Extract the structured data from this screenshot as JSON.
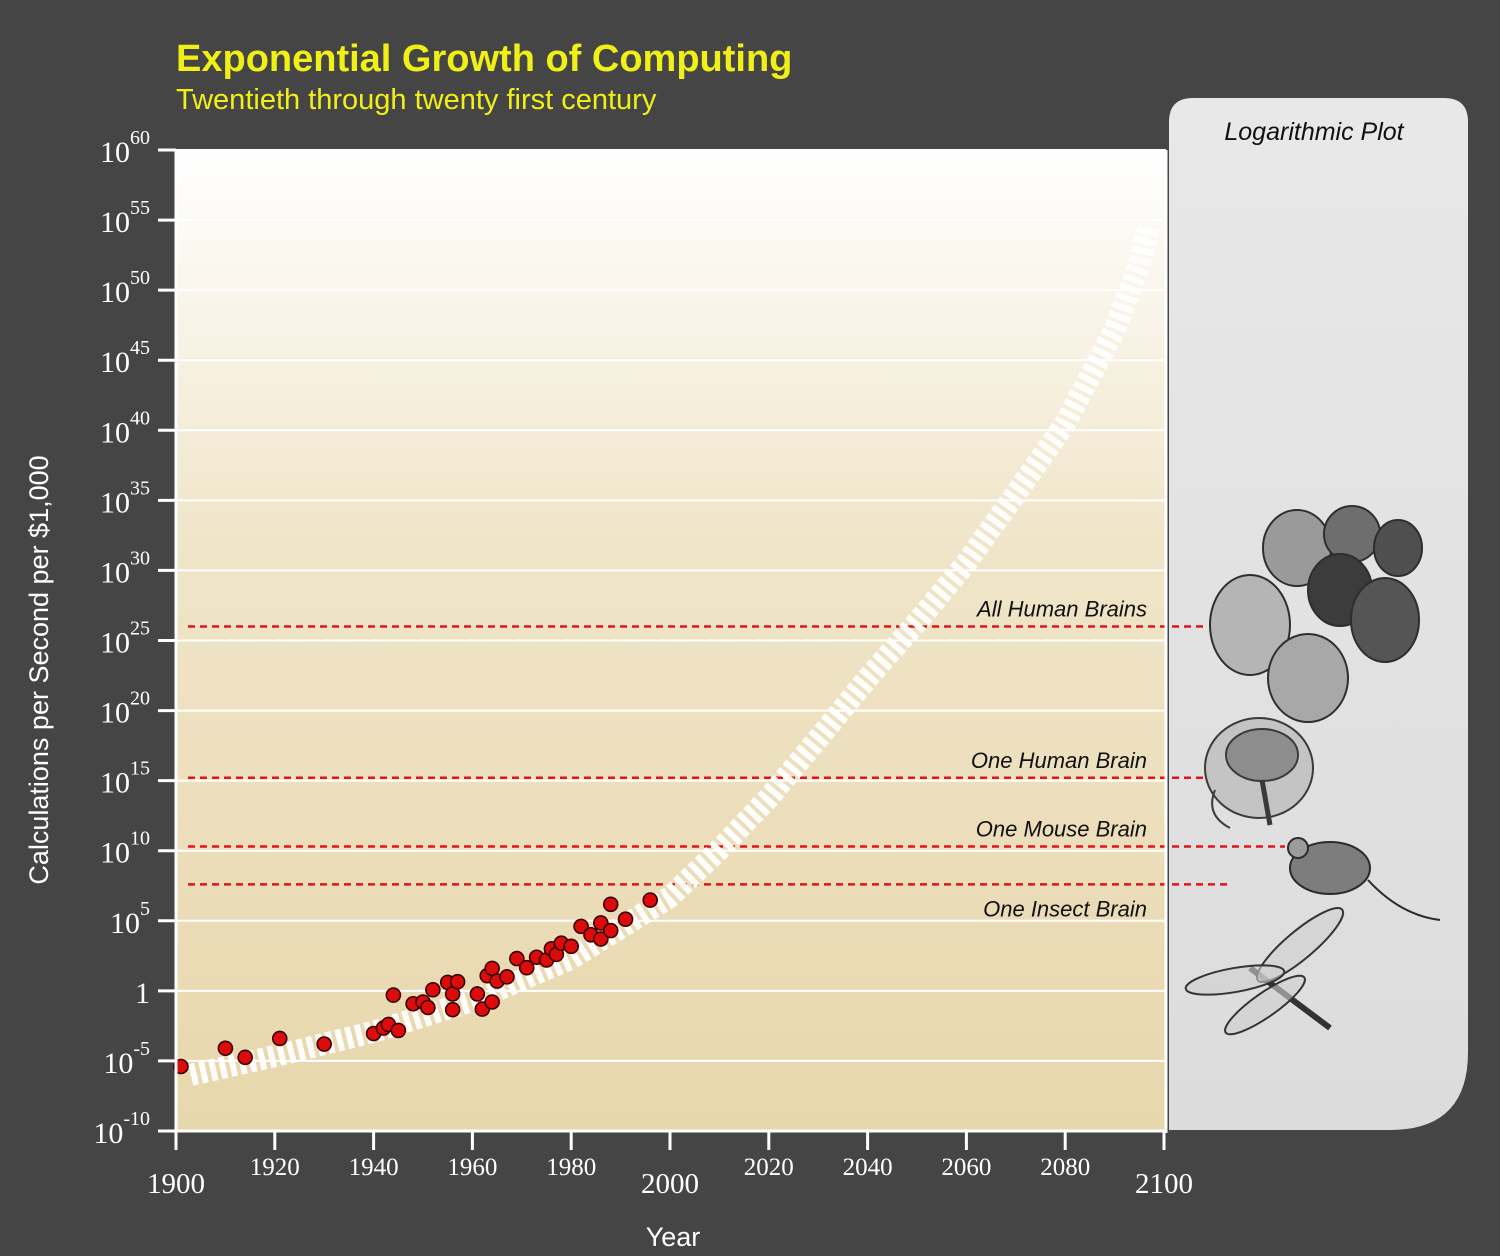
{
  "title": "Exponential Growth of Computing",
  "subtitle": "Twentieth through twenty first century",
  "side_panel_title": "Logarithmic Plot",
  "side_panel_images": [
    "crowd-of-faces-drawing",
    "human-brain-cross-section-drawing",
    "mouse-drawing",
    "dragonfly-drawing"
  ],
  "colors": {
    "background": "#454545",
    "title": "#f0f016",
    "plot_top": "#ffffff",
    "plot_bottom": "#e7d7ac",
    "gridline": "#ffffff",
    "reference_line": "#e0141a",
    "point_fill": "#dc0c0c",
    "trend": "#ffffff",
    "side_panel": "#e0e0e0",
    "axis_text": "#ffffff"
  },
  "chart_data": {
    "type": "scatter",
    "title": "Exponential Growth of Computing",
    "subtitle": "Twentieth through twenty first century",
    "xlabel": "Year",
    "ylabel": "Calculations per Second per $1,000",
    "x_scale": "linear",
    "y_scale": "log",
    "xlim": [
      1900,
      2100
    ],
    "ylim": [
      1e-10,
      1e+60
    ],
    "grid": "horizontal",
    "x_ticks": [
      {
        "value": 1900,
        "label": "1900"
      },
      {
        "value": 1920,
        "label": "1920"
      },
      {
        "value": 1940,
        "label": "1940"
      },
      {
        "value": 1960,
        "label": "1960"
      },
      {
        "value": 1980,
        "label": "1980"
      },
      {
        "value": 2000,
        "label": "2000"
      },
      {
        "value": 2020,
        "label": "2020"
      },
      {
        "value": 2040,
        "label": "2040"
      },
      {
        "value": 2060,
        "label": "2060"
      },
      {
        "value": 2080,
        "label": "2080"
      },
      {
        "value": 2100,
        "label": "2100"
      }
    ],
    "y_ticks": [
      {
        "value": 1e-10,
        "base": "10",
        "exp": "-10"
      },
      {
        "value": 1e-05,
        "base": "10",
        "exp": "-5"
      },
      {
        "value": 1,
        "base": "1",
        "exp": ""
      },
      {
        "value": 100000.0,
        "base": "10",
        "exp": "5"
      },
      {
        "value": 10000000000.0,
        "base": "10",
        "exp": "10"
      },
      {
        "value": 1000000000000000.0,
        "base": "10",
        "exp": "15"
      },
      {
        "value": 1e+20,
        "base": "10",
        "exp": "20"
      },
      {
        "value": 1e+25,
        "base": "10",
        "exp": "25"
      },
      {
        "value": 1e+30,
        "base": "10",
        "exp": "30"
      },
      {
        "value": 1e+35,
        "base": "10",
        "exp": "35"
      },
      {
        "value": 1e+40,
        "base": "10",
        "exp": "40"
      },
      {
        "value": 1e+45,
        "base": "10",
        "exp": "45"
      },
      {
        "value": 1e+50,
        "base": "10",
        "exp": "50"
      },
      {
        "value": 1e+55,
        "base": "10",
        "exp": "55"
      },
      {
        "value": 1e+60,
        "base": "10",
        "exp": "60"
      }
    ],
    "reference_lines": [
      {
        "label": "All Human Brains",
        "value": 1e+26
      },
      {
        "label": "One Human Brain",
        "value": 1600000000000000.0
      },
      {
        "label": "One Mouse Brain",
        "value": 20000000000.0
      },
      {
        "label": "One Insect Brain",
        "value": 40000000.0
      }
    ],
    "trend_curve": [
      {
        "x": 1903,
        "y": 1e-06
      },
      {
        "x": 1920,
        "y": 2.2e-05
      },
      {
        "x": 1940,
        "y": 0.0012
      },
      {
        "x": 1960,
        "y": 0.2
      },
      {
        "x": 1980,
        "y": 200
      },
      {
        "x": 2000,
        "y": 5000000.0
      },
      {
        "x": 2010,
        "y": 12000000000.0
      },
      {
        "x": 2020,
        "y": 60000000000000.0
      },
      {
        "x": 2030,
        "y": 1e+18
      },
      {
        "x": 2040,
        "y": 2e+22
      },
      {
        "x": 2050,
        "y": 2e+26
      },
      {
        "x": 2060,
        "y": 3.5e+30
      },
      {
        "x": 2070,
        "y": 3e+35
      },
      {
        "x": 2080,
        "y": 3e+40
      },
      {
        "x": 2090,
        "y": 1.5e+47
      },
      {
        "x": 2095,
        "y": 6e+51
      },
      {
        "x": 2097,
        "y": 5e+54
      }
    ],
    "points": [
      {
        "x": 1901,
        "y": 4e-06
      },
      {
        "x": 1910,
        "y": 8e-05
      },
      {
        "x": 1914,
        "y": 1.8e-05
      },
      {
        "x": 1921,
        "y": 0.0004
      },
      {
        "x": 1930,
        "y": 0.00016
      },
      {
        "x": 1940,
        "y": 0.0009
      },
      {
        "x": 1942,
        "y": 0.0022
      },
      {
        "x": 1943,
        "y": 0.004
      },
      {
        "x": 1944,
        "y": 0.5
      },
      {
        "x": 1945,
        "y": 0.0015
      },
      {
        "x": 1948,
        "y": 0.12
      },
      {
        "x": 1950,
        "y": 0.16
      },
      {
        "x": 1951,
        "y": 0.065
      },
      {
        "x": 1952,
        "y": 1.2
      },
      {
        "x": 1955,
        "y": 4
      },
      {
        "x": 1956,
        "y": 0.6
      },
      {
        "x": 1956,
        "y": 0.045
      },
      {
        "x": 1957,
        "y": 4.5
      },
      {
        "x": 1961,
        "y": 0.6
      },
      {
        "x": 1962,
        "y": 0.05
      },
      {
        "x": 1963,
        "y": 12
      },
      {
        "x": 1964,
        "y": 0.16
      },
      {
        "x": 1964,
        "y": 40
      },
      {
        "x": 1965,
        "y": 5
      },
      {
        "x": 1967,
        "y": 10
      },
      {
        "x": 1969,
        "y": 200
      },
      {
        "x": 1971,
        "y": 45
      },
      {
        "x": 1973,
        "y": 250
      },
      {
        "x": 1975,
        "y": 160
      },
      {
        "x": 1976,
        "y": 1000
      },
      {
        "x": 1977,
        "y": 400
      },
      {
        "x": 1978,
        "y": 2500
      },
      {
        "x": 1980,
        "y": 1500
      },
      {
        "x": 1982,
        "y": 40000
      },
      {
        "x": 1984,
        "y": 10000
      },
      {
        "x": 1986,
        "y": 5000
      },
      {
        "x": 1986,
        "y": 70000
      },
      {
        "x": 1988,
        "y": 1500000
      },
      {
        "x": 1988,
        "y": 20000
      },
      {
        "x": 1991,
        "y": 130000
      },
      {
        "x": 1996,
        "y": 3000000
      }
    ]
  }
}
